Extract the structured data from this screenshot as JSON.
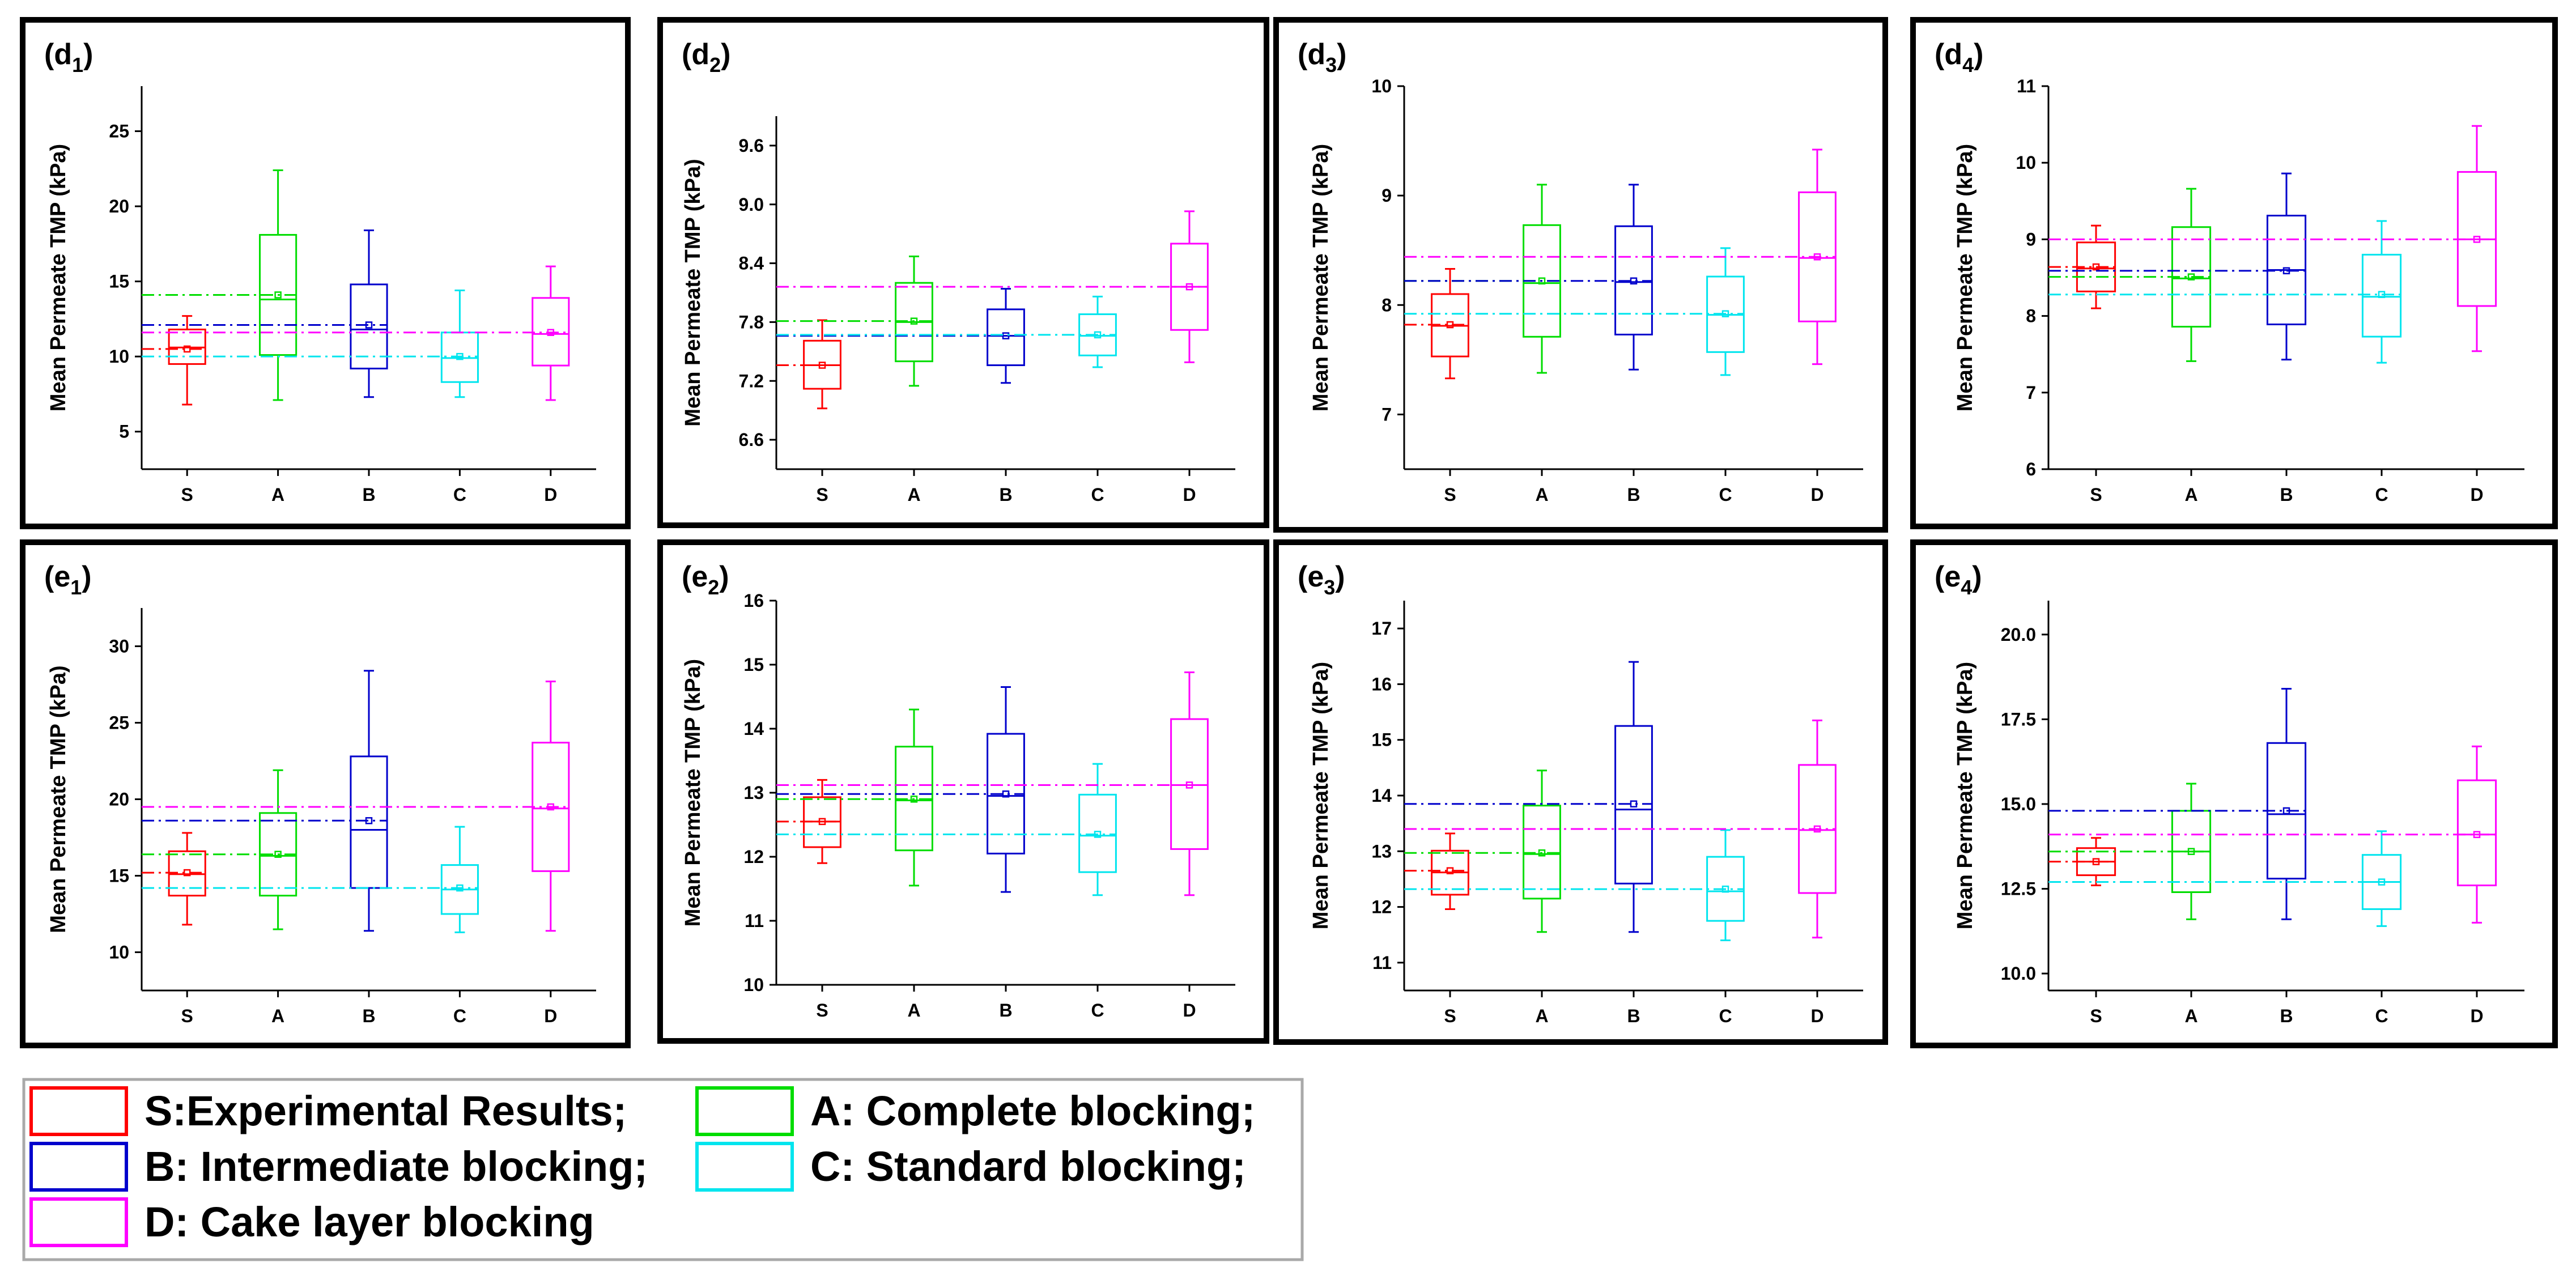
{
  "colors": {
    "S": "#ff0000",
    "A": "#00dd00",
    "B": "#0000cc",
    "C": "#00e5ee",
    "D": "#ff00ff"
  },
  "legend": [
    {
      "key": "S",
      "label": "S:Experimental Results;"
    },
    {
      "key": "A",
      "label": "A: Complete blocking;"
    },
    {
      "key": "B",
      "label": "B: Intermediate blocking;"
    },
    {
      "key": "C",
      "label": "C: Standard blocking;"
    },
    {
      "key": "D",
      "label": "D: Cake layer blocking"
    }
  ],
  "chart_data": [
    {
      "id": "d1",
      "label_main": "d",
      "label_sub": "1",
      "type": "box",
      "ylabel": "Mean Permeate TMP (kPa)",
      "ylim": [
        2.5,
        28
      ],
      "yticks": [
        5,
        10,
        15,
        20,
        25
      ],
      "tick_decimals": 0,
      "categories": [
        "S",
        "A",
        "B",
        "C",
        "D"
      ],
      "boxes": [
        {
          "q1": 9.5,
          "median": 10.6,
          "q3": 11.8,
          "min": 6.8,
          "max": 12.7,
          "mean": 10.5
        },
        {
          "q1": 10.1,
          "median": 13.8,
          "q3": 18.1,
          "min": 7.1,
          "max": 22.4,
          "mean": 14.1
        },
        {
          "q1": 9.2,
          "median": 11.8,
          "q3": 14.8,
          "min": 7.3,
          "max": 18.4,
          "mean": 12.1
        },
        {
          "q1": 8.3,
          "median": 9.9,
          "q3": 11.6,
          "min": 7.3,
          "max": 14.4,
          "mean": 10.0
        },
        {
          "q1": 9.4,
          "median": 11.5,
          "q3": 13.9,
          "min": 7.1,
          "max": 16.0,
          "mean": 11.6
        }
      ]
    },
    {
      "id": "d2",
      "label_main": "d",
      "label_sub": "2",
      "type": "box",
      "ylabel": "Mean Permeate TMP (kPa)",
      "ylim": [
        6.3,
        9.9
      ],
      "yticks": [
        6.6,
        7.2,
        7.8,
        8.4,
        9.0,
        9.6
      ],
      "tick_decimals": 1,
      "categories": [
        "S",
        "A",
        "B",
        "C",
        "D"
      ],
      "boxes": [
        {
          "q1": 7.12,
          "median": 7.36,
          "q3": 7.61,
          "min": 6.92,
          "max": 7.82,
          "mean": 7.36
        },
        {
          "q1": 7.4,
          "median": 7.8,
          "q3": 8.2,
          "min": 7.15,
          "max": 8.47,
          "mean": 7.81
        },
        {
          "q1": 7.36,
          "median": 7.66,
          "q3": 7.93,
          "min": 7.18,
          "max": 8.14,
          "mean": 7.66
        },
        {
          "q1": 7.46,
          "median": 7.66,
          "q3": 7.88,
          "min": 7.34,
          "max": 8.06,
          "mean": 7.67
        },
        {
          "q1": 7.72,
          "median": 8.16,
          "q3": 8.6,
          "min": 7.39,
          "max": 8.93,
          "mean": 8.16
        }
      ]
    },
    {
      "id": "d3",
      "label_main": "d",
      "label_sub": "3",
      "type": "box",
      "ylabel": "Mean Permeate TMP (kPa)",
      "ylim": [
        6.5,
        10
      ],
      "yticks": [
        7,
        8,
        9,
        10
      ],
      "tick_decimals": 0,
      "categories": [
        "S",
        "A",
        "B",
        "C",
        "D"
      ],
      "boxes": [
        {
          "q1": 7.53,
          "median": 7.81,
          "q3": 8.1,
          "min": 7.33,
          "max": 8.33,
          "mean": 7.82
        },
        {
          "q1": 7.71,
          "median": 8.2,
          "q3": 8.73,
          "min": 7.38,
          "max": 9.1,
          "mean": 8.22
        },
        {
          "q1": 7.73,
          "median": 8.21,
          "q3": 8.72,
          "min": 7.41,
          "max": 9.1,
          "mean": 8.22
        },
        {
          "q1": 7.57,
          "median": 7.91,
          "q3": 8.26,
          "min": 7.36,
          "max": 8.52,
          "mean": 7.92
        },
        {
          "q1": 7.85,
          "median": 8.43,
          "q3": 9.03,
          "min": 7.46,
          "max": 9.42,
          "mean": 8.44
        }
      ]
    },
    {
      "id": "d4",
      "label_main": "d",
      "label_sub": "4",
      "type": "box",
      "ylabel": "Mean Permeate TMP (kPa)",
      "ylim": [
        6,
        11
      ],
      "yticks": [
        6,
        7,
        8,
        9,
        10,
        11
      ],
      "tick_decimals": 0,
      "categories": [
        "S",
        "A",
        "B",
        "C",
        "D"
      ],
      "boxes": [
        {
          "q1": 8.32,
          "median": 8.62,
          "q3": 8.96,
          "min": 8.1,
          "max": 9.18,
          "mean": 8.64
        },
        {
          "q1": 7.86,
          "median": 8.49,
          "q3": 9.16,
          "min": 7.41,
          "max": 9.66,
          "mean": 8.51
        },
        {
          "q1": 7.89,
          "median": 8.6,
          "q3": 9.31,
          "min": 7.43,
          "max": 9.86,
          "mean": 8.59
        },
        {
          "q1": 7.73,
          "median": 8.25,
          "q3": 8.8,
          "min": 7.39,
          "max": 9.24,
          "mean": 8.28
        },
        {
          "q1": 8.13,
          "median": 9.0,
          "q3": 9.88,
          "min": 7.54,
          "max": 10.48,
          "mean": 9.0
        }
      ]
    },
    {
      "id": "e1",
      "label_main": "e",
      "label_sub": "1",
      "type": "box",
      "ylabel": "Mean Permeate TMP (kPa)",
      "ylim": [
        7.5,
        32.5
      ],
      "yticks": [
        10,
        15,
        20,
        25,
        30
      ],
      "tick_decimals": 0,
      "categories": [
        "S",
        "A",
        "B",
        "C",
        "D"
      ],
      "boxes": [
        {
          "q1": 13.7,
          "median": 15.1,
          "q3": 16.6,
          "min": 11.8,
          "max": 17.8,
          "mean": 15.2
        },
        {
          "q1": 13.7,
          "median": 16.3,
          "q3": 19.1,
          "min": 11.5,
          "max": 21.9,
          "mean": 16.4
        },
        {
          "q1": 14.2,
          "median": 18.0,
          "q3": 22.8,
          "min": 11.4,
          "max": 28.4,
          "mean": 18.6
        },
        {
          "q1": 12.5,
          "median": 14.1,
          "q3": 15.7,
          "min": 11.3,
          "max": 18.2,
          "mean": 14.2
        },
        {
          "q1": 15.3,
          "median": 19.4,
          "q3": 23.7,
          "min": 11.4,
          "max": 27.7,
          "mean": 19.5
        }
      ]
    },
    {
      "id": "e2",
      "label_main": "e",
      "label_sub": "2",
      "type": "box",
      "ylabel": "Mean Permeate TMP (kPa)",
      "ylim": [
        10,
        16
      ],
      "yticks": [
        10,
        11,
        12,
        13,
        14,
        15,
        16
      ],
      "tick_decimals": 0,
      "categories": [
        "S",
        "A",
        "B",
        "C",
        "D"
      ],
      "boxes": [
        {
          "q1": 12.15,
          "median": 12.55,
          "q3": 12.93,
          "min": 11.9,
          "max": 13.2,
          "mean": 12.55
        },
        {
          "q1": 12.1,
          "median": 12.88,
          "q3": 13.72,
          "min": 11.55,
          "max": 14.3,
          "mean": 12.9
        },
        {
          "q1": 12.05,
          "median": 12.95,
          "q3": 13.92,
          "min": 11.45,
          "max": 14.65,
          "mean": 12.98
        },
        {
          "q1": 11.76,
          "median": 12.33,
          "q3": 12.97,
          "min": 11.4,
          "max": 13.45,
          "mean": 12.35
        },
        {
          "q1": 12.12,
          "median": 13.12,
          "q3": 14.15,
          "min": 11.4,
          "max": 14.88,
          "mean": 13.12
        }
      ]
    },
    {
      "id": "e3",
      "label_main": "e",
      "label_sub": "3",
      "type": "box",
      "ylabel": "Mean Permeate TMP (kPa)",
      "ylim": [
        10.5,
        17.5
      ],
      "yticks": [
        11,
        12,
        13,
        14,
        15,
        16,
        17
      ],
      "tick_decimals": 0,
      "categories": [
        "S",
        "A",
        "B",
        "C",
        "D"
      ],
      "boxes": [
        {
          "q1": 12.22,
          "median": 12.62,
          "q3": 13.01,
          "min": 11.96,
          "max": 13.32,
          "mean": 12.65
        },
        {
          "q1": 12.15,
          "median": 12.95,
          "q3": 13.82,
          "min": 11.55,
          "max": 14.45,
          "mean": 12.97
        },
        {
          "q1": 12.42,
          "median": 13.75,
          "q3": 15.25,
          "min": 11.55,
          "max": 16.4,
          "mean": 13.85
        },
        {
          "q1": 11.75,
          "median": 12.28,
          "q3": 12.9,
          "min": 11.4,
          "max": 13.38,
          "mean": 12.32
        },
        {
          "q1": 12.25,
          "median": 13.38,
          "q3": 14.55,
          "min": 11.45,
          "max": 15.35,
          "mean": 13.4
        }
      ]
    },
    {
      "id": "e4",
      "label_main": "e",
      "label_sub": "4",
      "type": "box",
      "ylabel": "Mean Permeate TMP (kPa)",
      "ylim": [
        9.5,
        21
      ],
      "yticks": [
        10.0,
        12.5,
        15.0,
        17.5,
        20.0
      ],
      "tick_decimals": 1,
      "categories": [
        "S",
        "A",
        "B",
        "C",
        "D"
      ],
      "boxes": [
        {
          "q1": 12.9,
          "median": 13.3,
          "q3": 13.7,
          "min": 12.6,
          "max": 14.0,
          "mean": 13.3
        },
        {
          "q1": 12.4,
          "median": 13.6,
          "q3": 14.8,
          "min": 11.6,
          "max": 15.6,
          "mean": 13.6
        },
        {
          "q1": 12.8,
          "median": 14.7,
          "q3": 16.8,
          "min": 11.6,
          "max": 18.4,
          "mean": 14.8
        },
        {
          "q1": 11.9,
          "median": 12.7,
          "q3": 13.5,
          "min": 11.4,
          "max": 14.2,
          "mean": 12.7
        },
        {
          "q1": 12.6,
          "median": 14.1,
          "q3": 15.7,
          "min": 11.5,
          "max": 16.7,
          "mean": 14.1
        }
      ]
    }
  ]
}
